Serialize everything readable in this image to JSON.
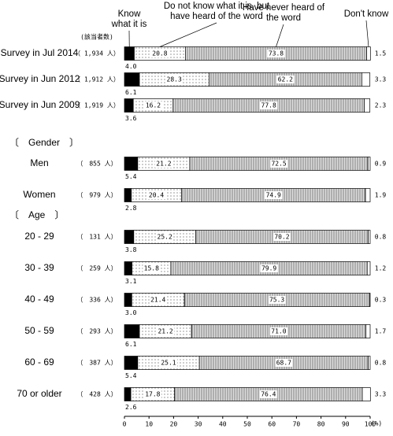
{
  "chart_data": {
    "type": "stacked-bar-horizontal",
    "count_header": "(該当者数)",
    "group_labels": [
      "〔　Gender　〕",
      "〔　Age　〕"
    ],
    "x_unit": "(%)",
    "categories": [
      "Survey in Jul 2014",
      "Survey in Jun 2012",
      "Survey in Jun 2009",
      "Men",
      "Women",
      "20 - 29",
      "30 - 39",
      "40 - 49",
      "50 - 59",
      "60 - 69",
      "70 or older"
    ],
    "counts": [
      "（ 1,934 人）",
      "（ 1,912 人）",
      "（ 1,919 人）",
      "（　855 人）",
      "（　979 人）",
      "（　131 人）",
      "（　259 人）",
      "（　336 人）",
      "（　293 人）",
      "（　387 人）",
      "（　428 人）"
    ],
    "series": [
      {
        "name": "Know what it is",
        "color": "#000000",
        "pattern": "solid",
        "values": [
          4.0,
          6.1,
          3.6,
          5.4,
          2.8,
          3.8,
          3.1,
          3.0,
          6.1,
          5.4,
          2.6
        ],
        "value_labels": [
          "4.0",
          "6.1",
          "3.6",
          "5.4",
          "2.8",
          "3.8",
          "3.1",
          "3.0",
          "6.1",
          "5.4",
          "2.6"
        ]
      },
      {
        "name": "Do not know what it is, but have heard of the word",
        "color": "#ffffff",
        "pattern": "dots",
        "values": [
          20.8,
          28.3,
          16.2,
          21.2,
          20.4,
          25.2,
          15.8,
          21.4,
          21.2,
          25.1,
          17.8
        ],
        "value_labels": [
          "20.8",
          "28.3",
          "16.2",
          "21.2",
          "20.4",
          "25.2",
          "15.8",
          "21.4",
          "21.2",
          "25.1",
          "17.8"
        ]
      },
      {
        "name": "Have never heard of the word",
        "color": "#dddddd",
        "pattern": "stripes",
        "values": [
          73.8,
          62.2,
          77.8,
          72.5,
          74.9,
          70.2,
          79.9,
          75.3,
          71.0,
          68.7,
          76.4
        ],
        "value_labels": [
          "73.8",
          "62.2",
          "77.8",
          "72.5",
          "74.9",
          "70.2",
          "79.9",
          "75.3",
          "71.0",
          "68.7",
          "76.4"
        ]
      },
      {
        "name": "Don't know",
        "color": "#ffffff",
        "pattern": "solid",
        "values": [
          1.5,
          3.3,
          2.3,
          0.9,
          1.9,
          0.8,
          1.2,
          0.3,
          1.7,
          0.8,
          3.3
        ],
        "value_labels": [
          "1.5",
          "3.3",
          "2.3",
          "0.9",
          "1.9",
          "0.8",
          "1.2",
          "0.3",
          "1.7",
          "0.8",
          "3.3"
        ]
      }
    ],
    "xlim": [
      0,
      100
    ],
    "xticks": [
      0,
      10,
      20,
      30,
      40,
      50,
      60,
      70,
      80,
      90,
      100
    ]
  }
}
